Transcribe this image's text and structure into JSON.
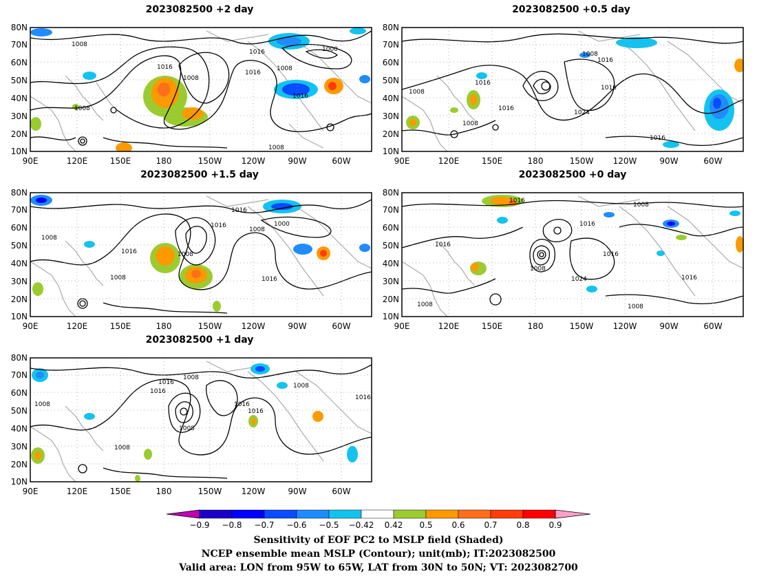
{
  "panels": [
    {
      "id": "p2",
      "title": "2023082500 +2 day",
      "labels": [
        "1008",
        "1016",
        "1016",
        "1008",
        "1016",
        "1008",
        "1000",
        "1016",
        "1008",
        "1008"
      ]
    },
    {
      "id": "p05",
      "title": "2023082500 +0.5 day",
      "labels": [
        "1008",
        "1016",
        "1008",
        "1016",
        "1016",
        "1024",
        "1016",
        "1008",
        "1016"
      ]
    },
    {
      "id": "p15",
      "title": "2023082500 +1.5 day",
      "labels": [
        "1016",
        "1016",
        "1008",
        "1000",
        "1008",
        "1016",
        "1008",
        "1008",
        "1016"
      ]
    },
    {
      "id": "p0",
      "title": "2023082500 +0 day",
      "labels": [
        "1016",
        "1008",
        "1016",
        "1016",
        "1008",
        "1024",
        "1016",
        "1016",
        "1008",
        "1008"
      ]
    },
    {
      "id": "p1",
      "title": "2023082500 +1 day",
      "labels": [
        "1016",
        "1008",
        "1016",
        "1008",
        "1016",
        "1016",
        "1008",
        "1008",
        "1016",
        "1008"
      ]
    }
  ],
  "axes": {
    "lat_labels": [
      "80N",
      "70N",
      "60N",
      "50N",
      "40N",
      "30N",
      "20N",
      "10N"
    ],
    "lon_labels": [
      "90E",
      "120E",
      "150E",
      "180",
      "150W",
      "120W",
      "90W",
      "60W"
    ]
  },
  "colorbar": {
    "ticks": [
      "−0.9",
      "−0.8",
      "−0.7",
      "−0.6",
      "−0.5",
      "−0.42",
      "0.42",
      "0.5",
      "0.6",
      "0.7",
      "0.8",
      "0.9"
    ],
    "colors": [
      "#c000b0",
      "#1a00c8",
      "#0000ff",
      "#0a4cff",
      "#1e8cff",
      "#12c3f0",
      "#ffffff",
      "#9bcc2f",
      "#ff9900",
      "#ff6e1a",
      "#ff3c0a",
      "#ff0000",
      "#ffa0c8"
    ]
  },
  "footer": {
    "line1": "Sensitivity of EOF PC2 to MSLP field (Shaded)",
    "line2": "NCEP ensemble mean MSLP (Contour); unit(mb); IT:2023082500",
    "line3": "Valid area: LON from 95W to 65W, LAT from 30N to 50N; VT: 2023082700"
  }
}
